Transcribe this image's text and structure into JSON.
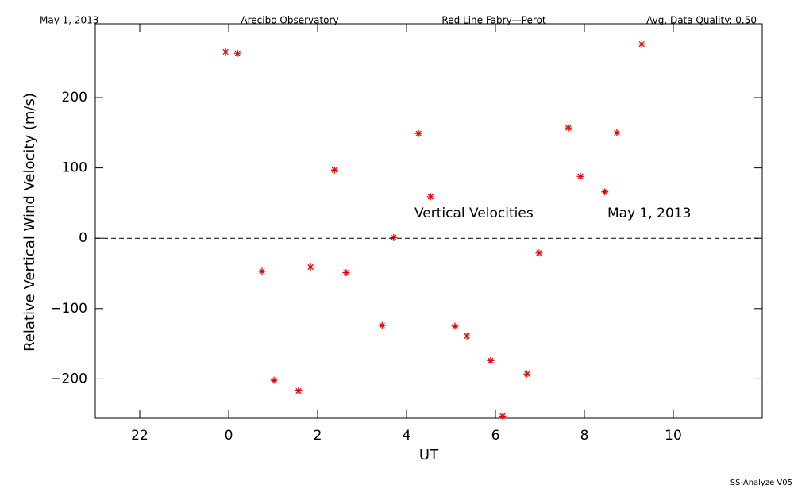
{
  "chart_data": {
    "type": "scatter",
    "header": [
      "May 1, 2013",
      "Arecibo Observatory",
      "Red Line Fabry—Perot",
      "Avg. Data Quality: 0.50"
    ],
    "xlabel": "UT",
    "ylabel": "Relative Vertical Wind Velocity (m/s)",
    "annotations": [
      "Vertical Velocities",
      "May 1, 2013"
    ],
    "footer": "SS-Analyze V05",
    "color": "#e00000",
    "xlim": [
      -3,
      12
    ],
    "xticks": [
      {
        "value": -2,
        "label": "22"
      },
      0,
      2,
      4,
      6,
      8,
      10
    ],
    "ylim": [
      -256,
      305
    ],
    "yticks": [
      {
        "value": -200,
        "label": "−200"
      },
      {
        "value": -100,
        "label": "−100"
      },
      0,
      100,
      200
    ],
    "zero_line": true,
    "x": [
      -0.07,
      0.2,
      0.75,
      1.02,
      1.57,
      1.84,
      2.38,
      2.64,
      3.45,
      3.71,
      4.27,
      4.54,
      5.09,
      5.36,
      5.89,
      6.16,
      6.71,
      6.98,
      7.64,
      7.91,
      8.46,
      8.73,
      9.29
    ],
    "values": [
      265,
      263,
      -47,
      -202,
      -217,
      -41,
      97,
      -49,
      -124,
      1,
      149,
      59,
      -125,
      -139,
      -174,
      -253,
      -193,
      -21,
      157,
      88,
      66,
      150,
      276
    ]
  }
}
